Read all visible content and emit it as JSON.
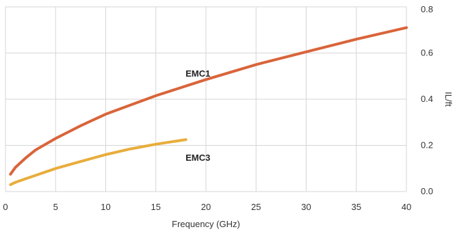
{
  "chart_data": {
    "type": "line",
    "xlabel": "Frequency (GHz)",
    "ylabel": "IL/ft",
    "xlim": [
      0,
      40
    ],
    "ylim": [
      0,
      0.8
    ],
    "x_ticks": [
      0,
      5,
      10,
      15,
      20,
      25,
      30,
      35,
      40
    ],
    "y_ticks": [
      0.0,
      0.2,
      0.4,
      0.6,
      0.8
    ],
    "y_tick_labels": [
      "0.0",
      "0.2",
      "0.4",
      "0.6",
      "0.8"
    ],
    "y_axis_side": "right",
    "grid": true,
    "series": [
      {
        "name": "EMC1",
        "color": "#d9643a",
        "x": [
          0.5,
          1,
          2,
          3,
          5,
          7.5,
          10,
          15,
          20,
          25,
          30,
          35,
          40
        ],
        "y": [
          0.075,
          0.105,
          0.145,
          0.18,
          0.23,
          0.285,
          0.335,
          0.415,
          0.485,
          0.55,
          0.605,
          0.66,
          0.71
        ]
      },
      {
        "name": "EMC3",
        "color": "#e8ad3b",
        "x": [
          0.5,
          1,
          2,
          3,
          5,
          7.5,
          10,
          12.5,
          15,
          18
        ],
        "y": [
          0.03,
          0.04,
          0.055,
          0.07,
          0.1,
          0.13,
          0.16,
          0.185,
          0.205,
          0.225
        ]
      }
    ]
  }
}
